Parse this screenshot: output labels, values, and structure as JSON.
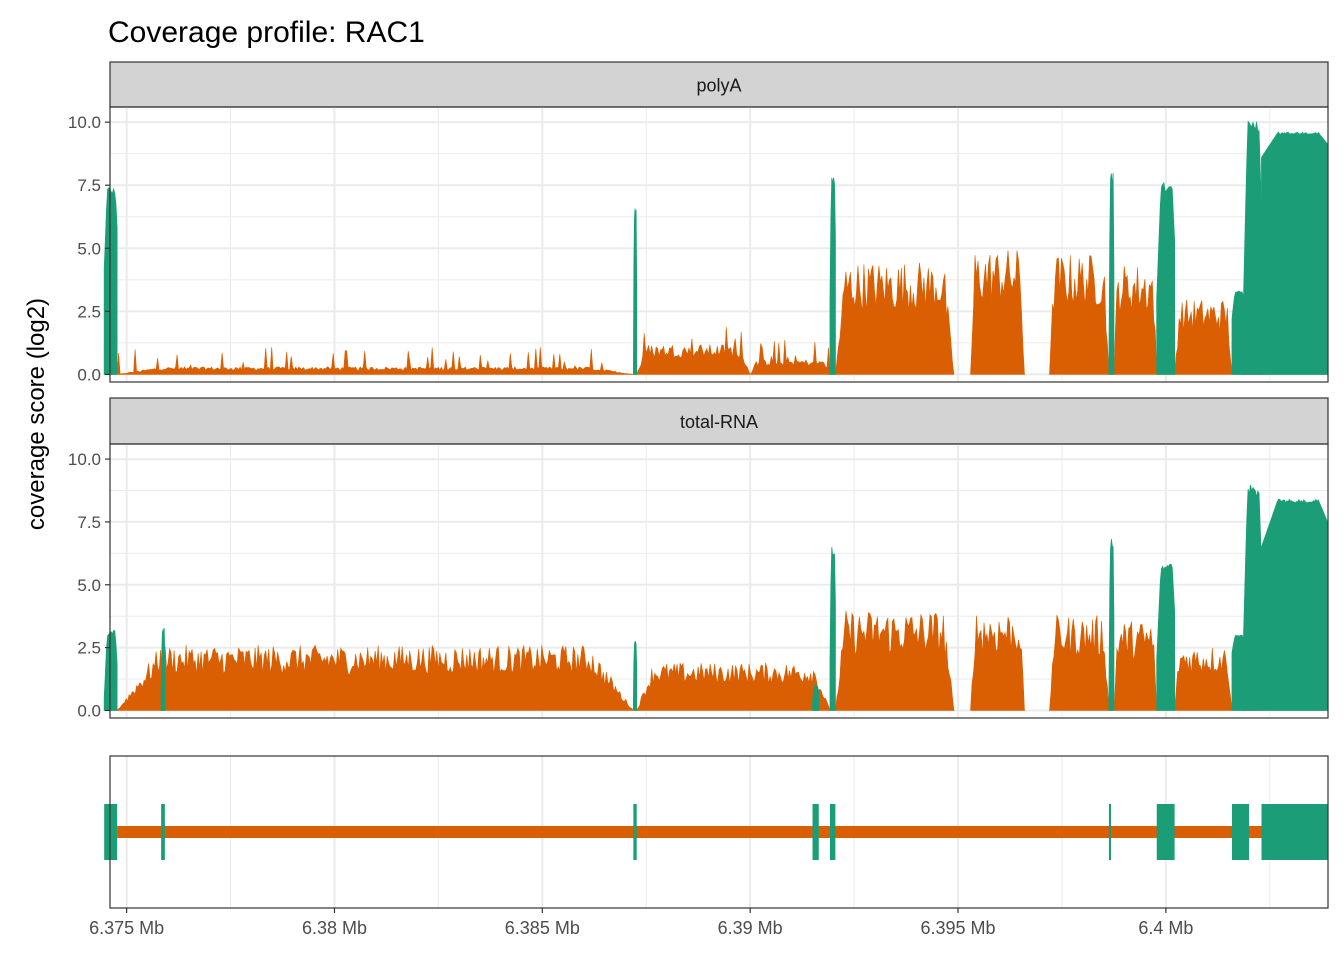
{
  "chart_data": {
    "type": "area",
    "title": "Coverage profile: RAC1",
    "ylabel": "coverage score (log2)",
    "xlabel": "",
    "xlim": [
      6.3746,
      6.4039
    ],
    "ylim": [
      -0.3,
      10.6
    ],
    "x_ticks": [
      6.375,
      6.38,
      6.385,
      6.39,
      6.395,
      6.4
    ],
    "x_tick_labels": [
      "6.375 Mb",
      "6.38 Mb",
      "6.385 Mb",
      "6.39 Mb",
      "6.395 Mb",
      "6.4 Mb"
    ],
    "y_ticks": [
      0,
      2.5,
      5,
      7.5,
      10
    ],
    "y_tick_labels": [
      "0.0",
      "2.5",
      "5.0",
      "7.5",
      "10.0"
    ],
    "grid": true,
    "colors": {
      "exon": "#1B9E77",
      "intron": "#D95F02",
      "strip": "#D3D3D3",
      "grid": "#EBEBEB"
    },
    "panels": [
      {
        "name": "polyA",
        "exon_series": [
          {
            "start": 6.37446,
            "end": 6.37477,
            "base": 4.2,
            "peak": 7.4
          },
          {
            "start": 6.38719,
            "end": 6.38727,
            "base": 0.3,
            "peak": 6.6
          },
          {
            "start": 6.39192,
            "end": 6.39205,
            "base": 3.0,
            "peak": 7.8
          },
          {
            "start": 6.39863,
            "end": 6.39875,
            "base": 0.3,
            "peak": 8.0
          },
          {
            "start": 6.39978,
            "end": 6.40021,
            "base": 3.0,
            "peak": 7.6
          },
          {
            "start": 6.40159,
            "end": 6.40189,
            "base": 2.2,
            "peak": 3.3
          },
          {
            "start": 6.40186,
            "end": 6.4023,
            "base": 2.5,
            "peak": 10.1
          },
          {
            "start": 6.4023,
            "end": 6.4039,
            "base": 8.6,
            "peak": 9.6
          }
        ],
        "intron_segments": [
          {
            "start": 6.37477,
            "end": 6.38719,
            "level": 0.3
          },
          {
            "start": 6.38727,
            "end": 6.39,
            "level": 1.2
          },
          {
            "start": 6.39,
            "end": 6.39192,
            "level": 0.6
          },
          {
            "start": 6.39205,
            "end": 6.3949,
            "level": 4.5
          },
          {
            "start": 6.3953,
            "end": 6.3966,
            "level": 5.0
          },
          {
            "start": 6.3972,
            "end": 6.39863,
            "level": 4.8
          },
          {
            "start": 6.39875,
            "end": 6.39978,
            "level": 4.4
          },
          {
            "start": 6.40021,
            "end": 6.40159,
            "level": 3.0
          },
          {
            "start": 6.40189,
            "end": 6.4023,
            "level": 3.3
          }
        ]
      },
      {
        "name": "total-RNA",
        "exon_series": [
          {
            "start": 6.37446,
            "end": 6.37477,
            "base": 0.5,
            "peak": 3.2
          },
          {
            "start": 6.37583,
            "end": 6.37592,
            "base": 0.5,
            "peak": 3.3
          },
          {
            "start": 6.38719,
            "end": 6.38727,
            "base": 0.4,
            "peak": 2.8
          },
          {
            "start": 6.3915,
            "end": 6.39165,
            "base": 0.3,
            "peak": 1.0
          },
          {
            "start": 6.39192,
            "end": 6.39205,
            "base": 2.0,
            "peak": 6.5
          },
          {
            "start": 6.39863,
            "end": 6.39875,
            "base": 0.5,
            "peak": 6.9
          },
          {
            "start": 6.39978,
            "end": 6.40021,
            "base": 2.0,
            "peak": 5.9
          },
          {
            "start": 6.40159,
            "end": 6.40189,
            "base": 2.3,
            "peak": 3.0
          },
          {
            "start": 6.40186,
            "end": 6.4023,
            "base": 2.5,
            "peak": 9.0
          },
          {
            "start": 6.4023,
            "end": 6.4039,
            "base": 6.5,
            "peak": 8.4
          }
        ],
        "intron_segments": [
          {
            "start": 6.37477,
            "end": 6.38719,
            "level": 2.6
          },
          {
            "start": 6.38727,
            "end": 6.39192,
            "level": 1.9
          },
          {
            "start": 6.39205,
            "end": 6.3949,
            "level": 4.0
          },
          {
            "start": 6.3953,
            "end": 6.3966,
            "level": 4.0
          },
          {
            "start": 6.3972,
            "end": 6.39863,
            "level": 3.8
          },
          {
            "start": 6.39875,
            "end": 6.39978,
            "level": 3.6
          },
          {
            "start": 6.40021,
            "end": 6.40159,
            "level": 2.6
          },
          {
            "start": 6.40189,
            "end": 6.4023,
            "level": 3.2
          }
        ]
      }
    ],
    "gene_model": {
      "intron_span": [
        6.37477,
        6.4023
      ],
      "exons": [
        [
          6.37446,
          6.37477
        ],
        [
          6.37583,
          6.37592
        ],
        [
          6.38719,
          6.38727
        ],
        [
          6.3915,
          6.39165
        ],
        [
          6.39192,
          6.39205
        ],
        [
          6.39863,
          6.39868
        ],
        [
          6.39978,
          6.40021
        ],
        [
          6.40159,
          6.402
        ],
        [
          6.4023,
          6.4039
        ]
      ]
    }
  }
}
